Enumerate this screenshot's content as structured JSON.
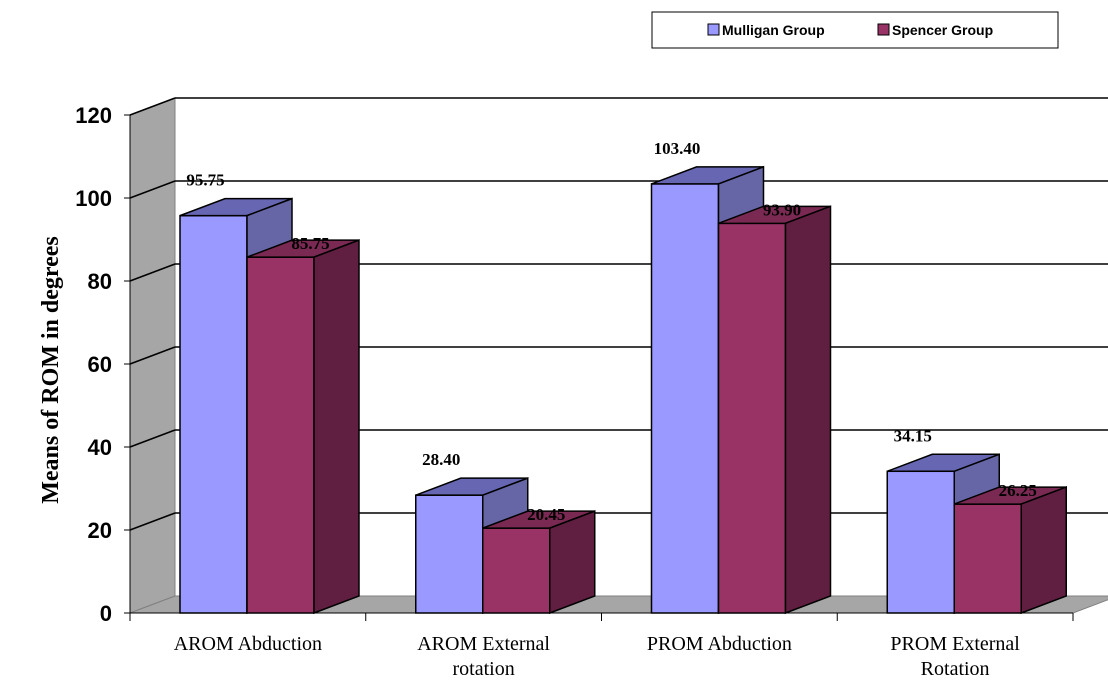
{
  "chart_data": {
    "type": "bar",
    "categories": [
      [
        "AROM Abduction"
      ],
      [
        "AROM External",
        "rotation"
      ],
      [
        "PROM Abduction"
      ],
      [
        "PROM External",
        "Rotation"
      ]
    ],
    "series": [
      {
        "name": "Mulligan Group",
        "values": [
          95.75,
          28.4,
          103.4,
          34.15
        ],
        "labels": [
          "95.75",
          "28.40",
          "103.40",
          "34.15"
        ],
        "color": "#9999ff",
        "top_color": "#6666b3",
        "side_color": "#6666a6"
      },
      {
        "name": "Spencer Group",
        "values": [
          85.75,
          20.45,
          93.9,
          26.25
        ],
        "labels": [
          "85.75",
          "20.45",
          "93.90",
          "26.25"
        ],
        "color": "#993366",
        "top_color": "#7a2952",
        "side_color": "#601f40"
      }
    ],
    "ylabel": "Means of ROM in degrees",
    "yticks": [
      "0",
      "20",
      "40",
      "60",
      "80",
      "100",
      "120"
    ],
    "ylim": [
      0,
      120
    ],
    "grid": true,
    "legend_position": "top-right",
    "wall_color": "#a6a6a6"
  }
}
